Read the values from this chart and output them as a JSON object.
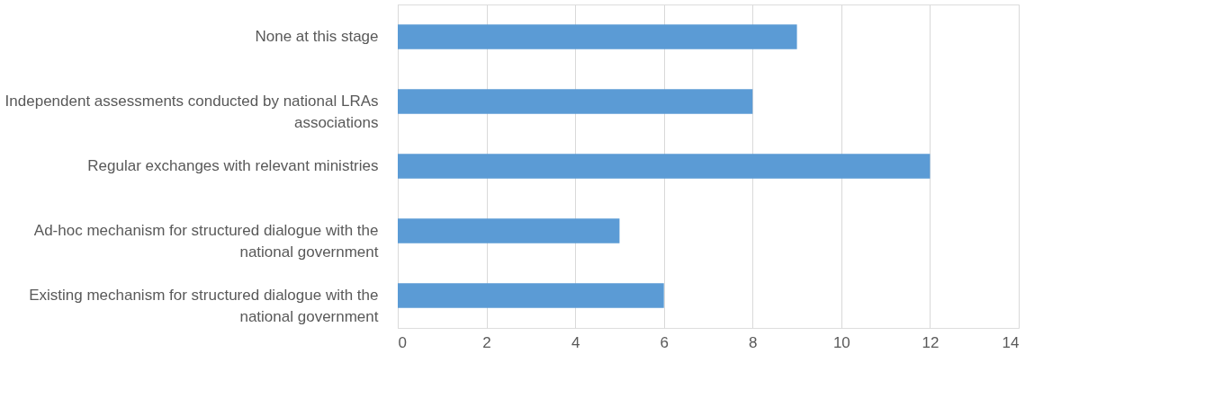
{
  "chart_data": {
    "type": "bar",
    "orientation": "horizontal",
    "categories": [
      "None at this stage",
      "Independent assessments conducted by national LRAs associations",
      "Regular exchanges with relevant ministries",
      "Ad-hoc mechanism for structured dialogue with the national government",
      "Existing mechanism for structured dialogue with the national government"
    ],
    "values": [
      9,
      8,
      12,
      5,
      6
    ],
    "color": "#5b9bd5",
    "xlim": [
      0,
      14
    ],
    "xticks": [
      0,
      2,
      4,
      6,
      8,
      10,
      12,
      14
    ],
    "grid": "x"
  }
}
